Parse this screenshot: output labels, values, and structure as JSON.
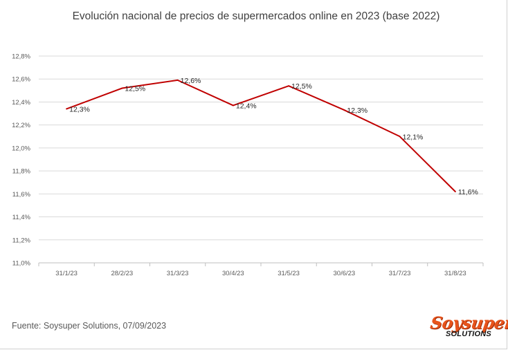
{
  "chart_data": {
    "type": "line",
    "title": "Evolución nacional de precios de supermercados online en 2023  (base 2022)",
    "categories": [
      "31/1/23",
      "28/2/23",
      "31/3/23",
      "30/4/23",
      "31/5/23",
      "30/6/23",
      "31/7/23",
      "31/8/23"
    ],
    "series": [
      {
        "values": [
          12.34,
          12.52,
          12.59,
          12.37,
          12.54,
          12.33,
          12.1,
          11.62
        ],
        "labels": [
          "12,3%",
          "12,5%",
          "12,6%",
          "12,4%",
          "12,5%",
          "12,3%",
          "12,1%",
          "11,6%"
        ],
        "color": "#c00000"
      }
    ],
    "ylim": [
      11.0,
      12.8
    ],
    "yticks": [
      11.0,
      11.2,
      11.4,
      11.6,
      11.8,
      12.0,
      12.2,
      12.4,
      12.6,
      12.8
    ],
    "ytick_labels": [
      "11,0%",
      "11,2%",
      "11,4%",
      "11,6%",
      "11,8%",
      "12,0%",
      "12,2%",
      "12,4%",
      "12,6%",
      "12,8%"
    ],
    "grid": true,
    "gridColor": "#d9d9d9",
    "xlabel": "",
    "ylabel": ""
  },
  "footer": {
    "source": "Fuente: Soysuper Solutions, 07/09/2023"
  },
  "logo": {
    "word": "Soysuper",
    "sub": "SOLUTIONS",
    "color": "#e8541c"
  }
}
